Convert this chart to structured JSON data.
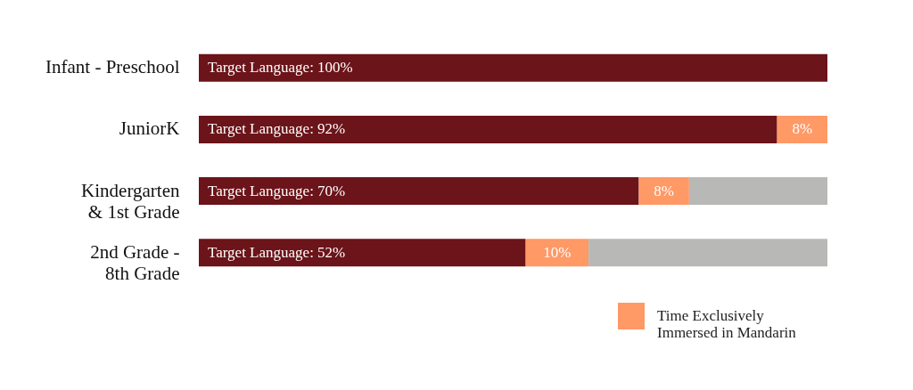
{
  "chart_data": {
    "type": "bar",
    "orientation": "horizontal",
    "stacked": true,
    "categories": [
      "Infant - Preschool",
      "JuniorK",
      "Kindergarten & 1st Grade",
      "2nd Grade - 8th Grade"
    ],
    "series": [
      {
        "color": "#6b1419",
        "values": [
          100,
          92,
          70,
          52
        ],
        "value_labels": [
          "Target Language: 100%",
          "Target Language: 92%",
          "Target Language: 70%",
          "Target Language: 52%"
        ]
      },
      {
        "name": "Time Exclusively Immersed in Mandarin",
        "color": "#ff9966",
        "values": [
          null,
          8,
          8,
          10
        ],
        "value_labels": [
          null,
          "8%",
          "8%",
          "10%"
        ]
      },
      {
        "color": "#b8b8b6",
        "values": [
          null,
          null,
          22,
          38
        ]
      }
    ],
    "xlim": [
      0,
      100
    ],
    "tick_labels": "y",
    "legend": "bottom right"
  }
}
